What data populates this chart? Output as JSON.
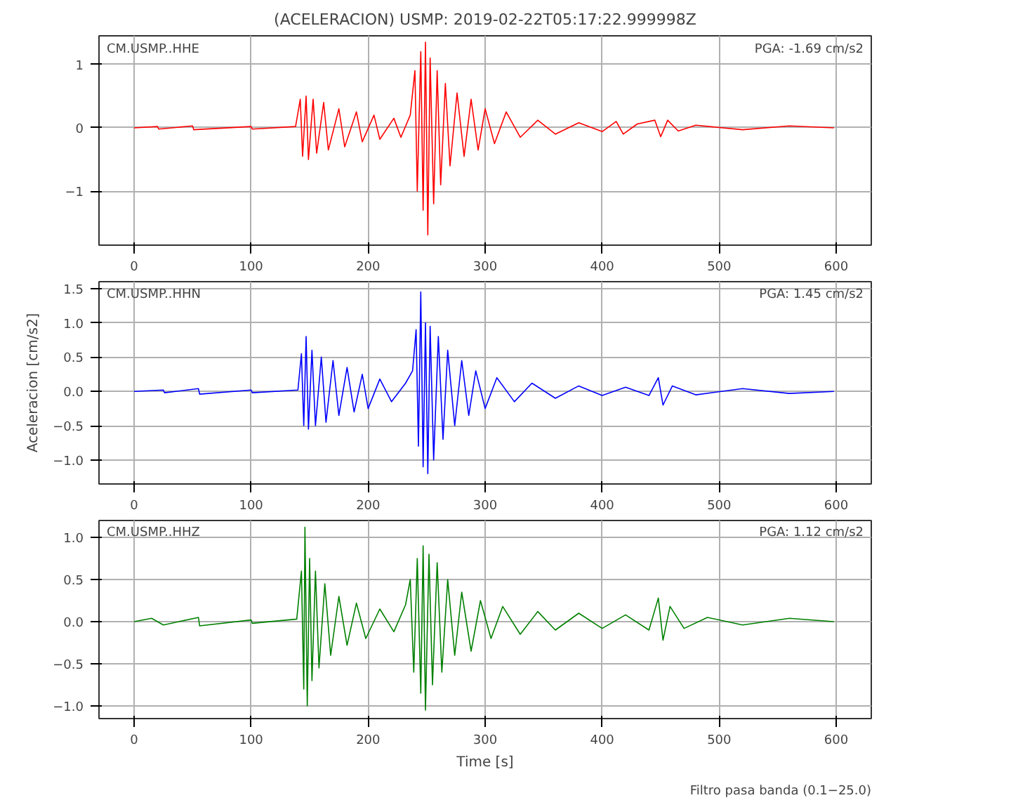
{
  "chart_data": [
    {
      "type": "line",
      "title": "(ACELERACION) USMP: 2019-02-22T05:17:22.999998Z",
      "annotations": [
        "CM.USMP..HHE",
        "PGA: -1.69 cm/s2"
      ],
      "xlim": [
        -30,
        630
      ],
      "xticks": [
        0,
        100,
        200,
        300,
        400,
        500,
        600
      ],
      "ylim": [
        -1.85,
        1.45
      ],
      "yticks": [
        -1,
        0,
        1
      ],
      "grid": true,
      "series": [
        {
          "color": "#ff0000",
          "x": [
            0,
            20,
            21,
            50,
            51,
            100,
            101,
            138,
            142,
            144,
            147,
            149,
            153,
            156,
            162,
            166,
            175,
            180,
            190,
            195,
            205,
            210,
            222,
            228,
            236,
            240,
            242,
            245,
            247,
            249,
            251,
            253,
            256,
            259,
            262,
            266,
            270,
            276,
            282,
            288,
            294,
            300,
            308,
            318,
            330,
            345,
            360,
            380,
            400,
            412,
            418,
            430,
            445,
            450,
            456,
            465,
            480,
            520,
            560,
            598
          ],
          "values": [
            0,
            0.02,
            -0.02,
            0.03,
            -0.03,
            0.02,
            -0.02,
            0.02,
            0.45,
            -0.45,
            0.5,
            -0.5,
            0.45,
            -0.4,
            0.4,
            -0.35,
            0.3,
            -0.3,
            0.25,
            -0.22,
            0.2,
            -0.18,
            0.15,
            -0.15,
            0.2,
            0.9,
            -1.0,
            1.2,
            -1.3,
            1.35,
            -1.69,
            1.1,
            -1.2,
            0.9,
            -0.9,
            0.7,
            -0.6,
            0.55,
            -0.45,
            0.45,
            -0.35,
            0.3,
            -0.25,
            0.25,
            -0.15,
            0.12,
            -0.1,
            0.08,
            -0.06,
            0.1,
            -0.1,
            0.06,
            0.12,
            -0.14,
            0.12,
            -0.05,
            0.04,
            -0.03,
            0.03,
            0
          ]
        }
      ]
    },
    {
      "type": "line",
      "ylabel": "Aceleracion [cm/s2]",
      "annotations": [
        "CM.USMP..HHN",
        "PGA: 1.45 cm/s2"
      ],
      "xlim": [
        -30,
        630
      ],
      "xticks": [
        0,
        100,
        200,
        300,
        400,
        500,
        600
      ],
      "ylim": [
        -1.35,
        1.6
      ],
      "yticks": [
        {
          "value": -1.0,
          "label": "−1.0"
        },
        {
          "value": -0.5,
          "label": "−0.5"
        },
        {
          "value": 0,
          "label": "0.0"
        },
        {
          "value": 0.5,
          "label": "0.5"
        },
        {
          "value": 1.0,
          "label": "1.0"
        },
        {
          "value": 1.5,
          "label": "1.5"
        }
      ],
      "grid": true,
      "series": [
        {
          "color": "#0000ff",
          "x": [
            0,
            25,
            26,
            55,
            56,
            100,
            101,
            140,
            143,
            145,
            147,
            149,
            152,
            155,
            160,
            164,
            170,
            175,
            182,
            188,
            195,
            200,
            210,
            220,
            232,
            238,
            241,
            243,
            245,
            247,
            249,
            251,
            253,
            256,
            260,
            264,
            268,
            274,
            280,
            286,
            292,
            300,
            310,
            325,
            340,
            360,
            380,
            400,
            420,
            440,
            448,
            452,
            460,
            480,
            520,
            560,
            598
          ],
          "values": [
            0,
            0.02,
            -0.02,
            0.04,
            -0.04,
            0.02,
            -0.02,
            0.02,
            0.55,
            -0.5,
            0.8,
            -0.55,
            0.6,
            -0.5,
            0.5,
            -0.45,
            0.45,
            -0.35,
            0.35,
            -0.3,
            0.25,
            -0.25,
            0.18,
            -0.15,
            0.12,
            0.3,
            0.9,
            -0.8,
            1.45,
            -1.1,
            1.0,
            -1.2,
            0.95,
            -1.0,
            0.8,
            -0.7,
            0.6,
            -0.5,
            0.45,
            -0.35,
            0.3,
            -0.25,
            0.2,
            -0.15,
            0.12,
            -0.1,
            0.08,
            -0.06,
            0.06,
            -0.06,
            0.2,
            -0.2,
            0.08,
            -0.05,
            0.04,
            -0.03,
            0
          ]
        }
      ]
    },
    {
      "type": "line",
      "xlabel": "Time [s]",
      "annotations": [
        "CM.USMP..HHZ",
        "PGA: 1.12 cm/s2",
        "Filtro pasa banda (0.1−25.0)"
      ],
      "xlim": [
        -30,
        630
      ],
      "xticks": [
        0,
        100,
        200,
        300,
        400,
        500,
        600
      ],
      "ylim": [
        -1.15,
        1.2
      ],
      "yticks": [
        {
          "value": -1.0,
          "label": "−1.0"
        },
        {
          "value": -0.5,
          "label": "−0.5"
        },
        {
          "value": 0,
          "label": "0.0"
        },
        {
          "value": 0.5,
          "label": "0.5"
        },
        {
          "value": 1.0,
          "label": "1.0"
        }
      ],
      "grid": true,
      "series": [
        {
          "color": "#008000",
          "x": [
            0,
            15,
            25,
            55,
            56,
            100,
            101,
            139,
            143,
            145,
            146,
            148,
            150,
            152,
            155,
            158,
            163,
            168,
            175,
            182,
            190,
            198,
            210,
            222,
            232,
            236,
            239,
            242,
            245,
            247,
            249,
            252,
            255,
            259,
            263,
            268,
            274,
            280,
            288,
            296,
            305,
            315,
            330,
            345,
            360,
            380,
            400,
            420,
            440,
            448,
            452,
            458,
            470,
            490,
            520,
            560,
            598
          ],
          "values": [
            0,
            0.04,
            -0.04,
            0.05,
            -0.05,
            0.02,
            -0.02,
            0.03,
            0.6,
            -0.8,
            1.12,
            -1.0,
            0.75,
            -0.7,
            0.6,
            -0.55,
            0.45,
            -0.4,
            0.3,
            -0.28,
            0.22,
            -0.2,
            0.15,
            -0.12,
            0.2,
            0.5,
            -0.6,
            0.75,
            -0.85,
            0.9,
            -1.05,
            0.8,
            -0.75,
            0.7,
            -0.6,
            0.5,
            -0.4,
            0.35,
            -0.35,
            0.25,
            -0.2,
            0.18,
            -0.15,
            0.12,
            -0.1,
            0.1,
            -0.08,
            0.08,
            -0.1,
            0.28,
            -0.22,
            0.18,
            -0.08,
            0.05,
            -0.04,
            0.04,
            0
          ]
        }
      ]
    }
  ]
}
